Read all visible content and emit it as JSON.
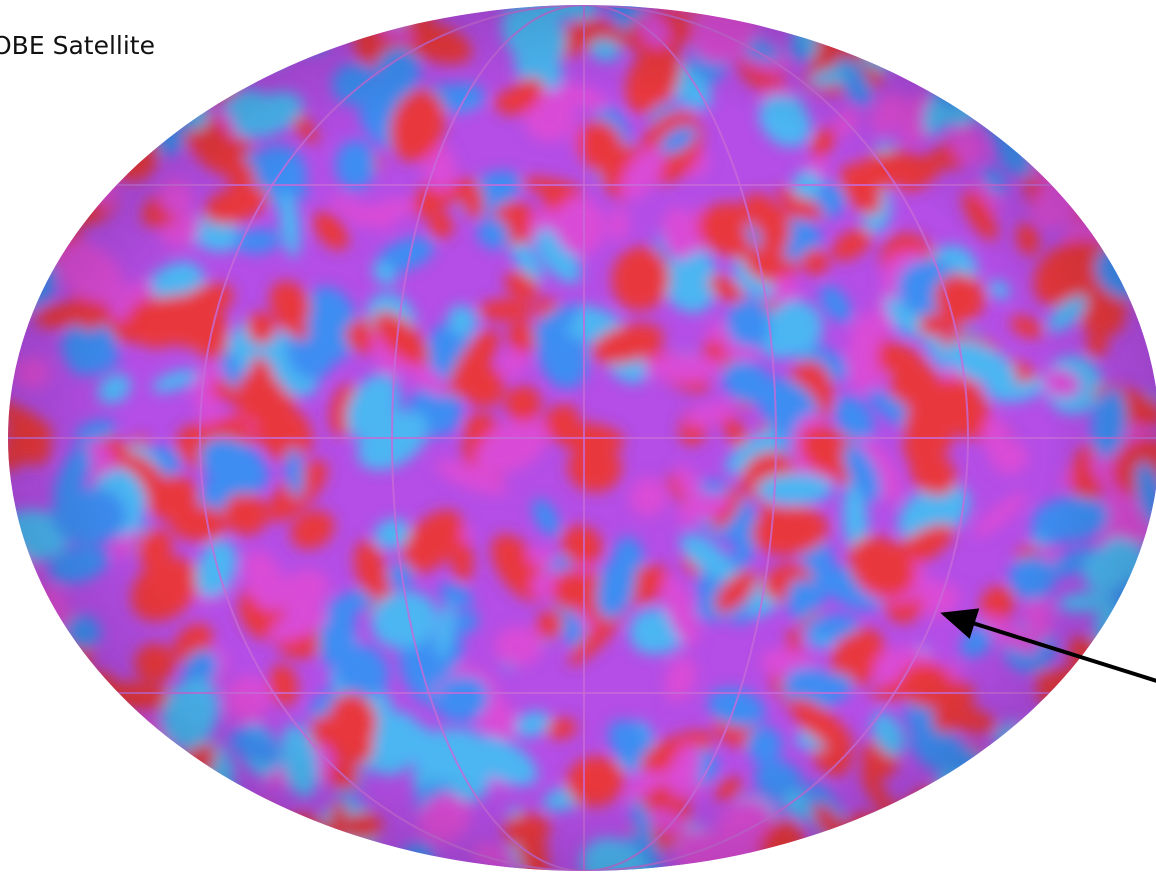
{
  "caption": "OBE Satellite"
}
